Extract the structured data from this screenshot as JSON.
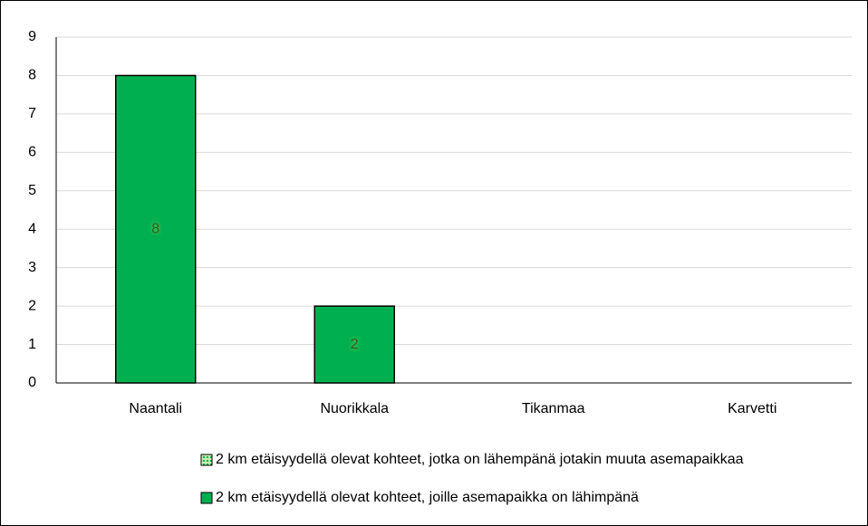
{
  "chart_data": {
    "type": "bar",
    "stacked": true,
    "categories": [
      "Naantali",
      "Nuorikkala",
      "Tikanmaa",
      "Karvetti"
    ],
    "series": [
      {
        "name": "2 km etäisyydellä olevat kohteet, jotka on lähempänä jotakin muuta asemapaikkaa",
        "color": "#c6efb0",
        "pattern": "dots",
        "values": [
          0,
          0,
          0,
          0
        ]
      },
      {
        "name": "2 km etäisyydellä olevat kohteet, joille asemapaikka on lähimpänä",
        "color": "#00b050",
        "values": [
          8,
          2,
          0,
          0
        ]
      }
    ],
    "ylim": [
      0,
      9
    ],
    "yticks": [
      0,
      1,
      2,
      3,
      4,
      5,
      6,
      7,
      8,
      9
    ],
    "grid": true,
    "legend": "bottom"
  }
}
